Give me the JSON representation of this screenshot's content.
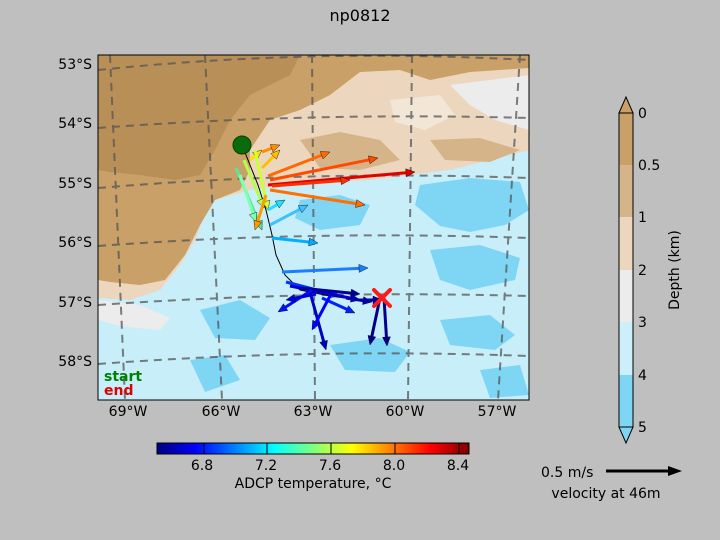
{
  "title": "np0812",
  "map": {
    "lat_labels": [
      "53°S",
      "54°S",
      "55°S",
      "56°S",
      "57°S",
      "58°S"
    ],
    "lon_labels": [
      "69°W",
      "66°W",
      "63°W",
      "60°W",
      "57°W"
    ],
    "start_label": "start",
    "end_label": "end",
    "colors": {
      "start": "#008000",
      "end": "#e00000",
      "shelf": "#c8a068",
      "mid": "#e6d2b4",
      "deep": "#c8eefa",
      "deepest": "#7fd6f4"
    }
  },
  "depth_colorbar": {
    "label": "Depth (km)",
    "ticks": [
      "0",
      "0.5",
      "1",
      "2",
      "3",
      "4",
      "5"
    ],
    "colors": [
      "#c8a068",
      "#d6b48a",
      "#ecd6be",
      "#ececec",
      "#cdeffb",
      "#7fd6f4"
    ]
  },
  "temp_colorbar": {
    "label": "ADCP temperature, °C",
    "ticks": [
      "6.8",
      "7.2",
      "7.6",
      "8.0",
      "8.4"
    ]
  },
  "velocity_key": {
    "value_label": "0.5 m/s",
    "depth_label": "velocity at 46m"
  }
}
